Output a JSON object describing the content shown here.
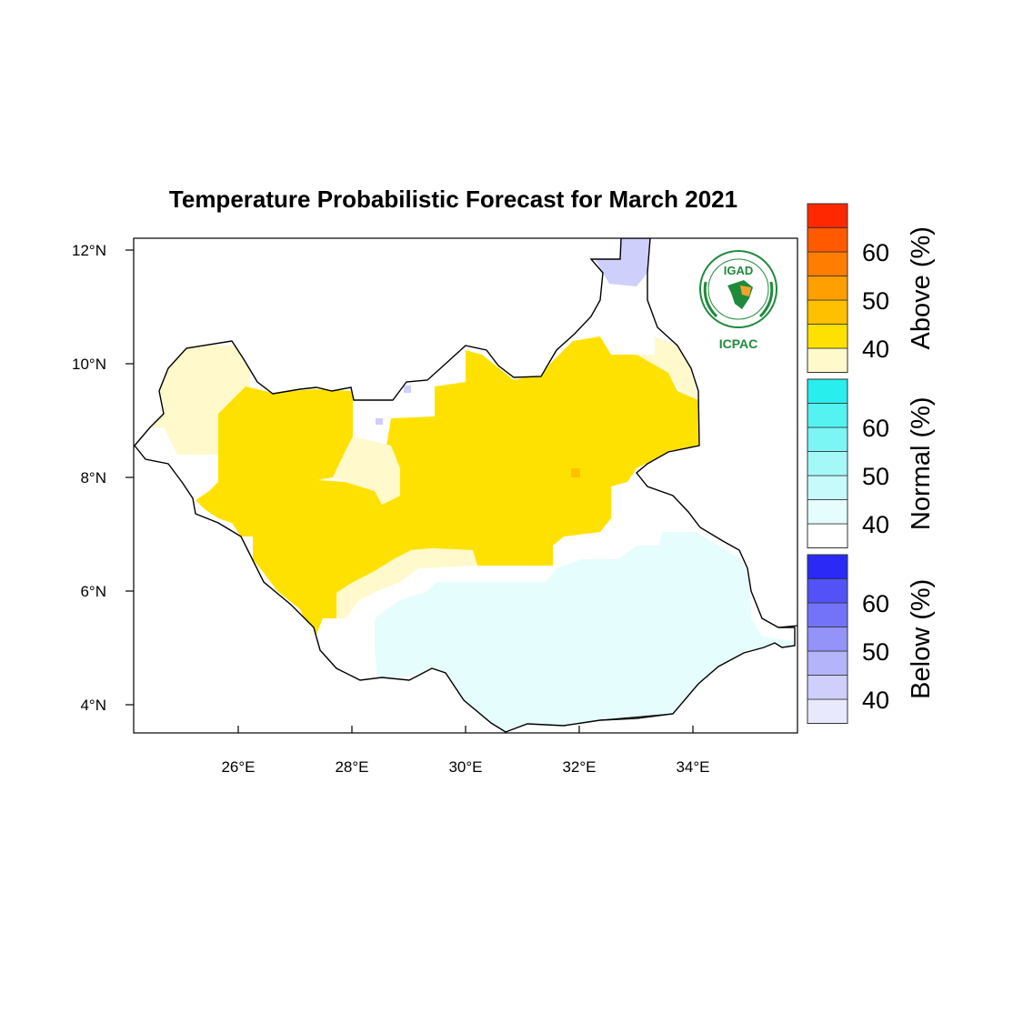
{
  "title": "Temperature Probabilistic Forecast for March 2021",
  "axes": {
    "lon_ticks": [
      {
        "value": 26,
        "label": "26°E"
      },
      {
        "value": 28,
        "label": "28°E"
      },
      {
        "value": 30,
        "label": "30°E"
      },
      {
        "value": 32,
        "label": "32°E"
      },
      {
        "value": 34,
        "label": "34°E"
      }
    ],
    "lat_ticks": [
      {
        "value": 12,
        "label": "12°N"
      },
      {
        "value": 10,
        "label": "10°N"
      },
      {
        "value": 8,
        "label": "8°N"
      },
      {
        "value": 6,
        "label": "6°N"
      },
      {
        "value": 4,
        "label": "4°N"
      }
    ],
    "lon_range": [
      24.2,
      35.8
    ],
    "lat_range": [
      3.5,
      12.2
    ]
  },
  "logo": {
    "top_text": "IGAD",
    "bottom_text": "ICPAC"
  },
  "colorbars": [
    {
      "name": "above",
      "title": "Above (%)",
      "colors": [
        "#fff9cc",
        "#ffe100",
        "#ffc000",
        "#ff9f00",
        "#ff7d00",
        "#ff5a00",
        "#ff2800"
      ],
      "labels": [
        "40",
        "50",
        "60"
      ]
    },
    {
      "name": "normal",
      "title": "Normal (%)",
      "colors": [
        "#ffffff",
        "#e6fdfd",
        "#c7fbfb",
        "#a4f8f8",
        "#7cf5f5",
        "#55f2f2",
        "#28eeee"
      ],
      "labels": [
        "40",
        "50",
        "60"
      ]
    },
    {
      "name": "below",
      "title": "Below (%)",
      "colors": [
        "#e9e9fd",
        "#cfcffc",
        "#b4b4fb",
        "#9393fa",
        "#7373f8",
        "#5252f7",
        "#2a2af4"
      ],
      "labels": [
        "40",
        "50",
        "60"
      ]
    }
  ],
  "map_colors": {
    "above_40": "#fff9cc",
    "above_45": "#ffe100",
    "above_50": "#ffc000",
    "normal_40": "#e6fdfd",
    "below_40": "#cfcffc",
    "border": "#000000"
  }
}
